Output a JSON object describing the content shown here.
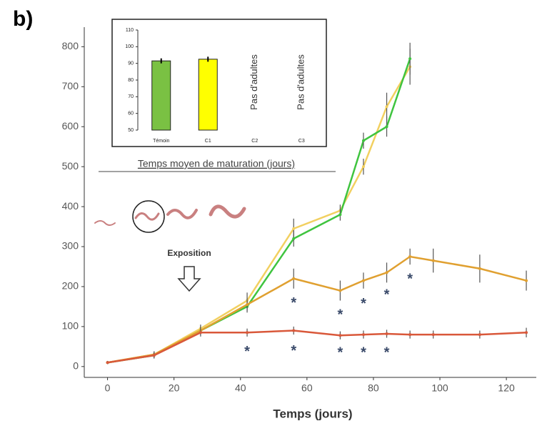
{
  "chart_data": [
    {
      "type": "line",
      "panel_label": "b)",
      "x_label": "Temps (jours)",
      "xlim": [
        -7,
        129
      ],
      "xticks": [
        0,
        20,
        40,
        60,
        80,
        100,
        120
      ],
      "ylim": [
        -20,
        840
      ],
      "yticks": [
        0,
        100,
        200,
        300,
        400,
        500,
        600,
        700,
        800
      ],
      "series": [
        {
          "color": "#f2d060",
          "x": [
            0,
            14,
            28,
            42,
            56,
            70,
            77,
            84,
            91
          ],
          "values": [
            10,
            30,
            95,
            165,
            345,
            390,
            500,
            650,
            750
          ],
          "errors": [
            4,
            8,
            10,
            20,
            25,
            15,
            20,
            35,
            45
          ]
        },
        {
          "color": "#3fc43f",
          "x": [
            0,
            14,
            28,
            42,
            56,
            70,
            77,
            84,
            91
          ],
          "values": [
            10,
            28,
            90,
            150,
            320,
            380,
            565,
            600,
            770
          ],
          "errors": [
            4,
            8,
            10,
            15,
            20,
            15,
            20,
            25,
            40
          ]
        },
        {
          "color": "#e0a030",
          "x": [
            0,
            14,
            28,
            42,
            56,
            70,
            77,
            84,
            91,
            98,
            112,
            126
          ],
          "values": [
            10,
            30,
            90,
            155,
            220,
            190,
            215,
            235,
            275,
            265,
            245,
            215
          ],
          "errors": [
            4,
            8,
            10,
            15,
            25,
            25,
            20,
            25,
            20,
            30,
            35,
            25
          ]
        },
        {
          "color": "#d9583a",
          "x": [
            0,
            14,
            28,
            42,
            56,
            70,
            77,
            84,
            91,
            98,
            112,
            126
          ],
          "values": [
            10,
            28,
            85,
            85,
            90,
            78,
            80,
            82,
            80,
            80,
            80,
            85
          ],
          "errors": [
            4,
            6,
            10,
            10,
            10,
            10,
            10,
            10,
            10,
            10,
            10,
            12
          ]
        }
      ],
      "significance": {
        "label": "*",
        "x": [
          42,
          56,
          56,
          70,
          70,
          77,
          77,
          84,
          84,
          91
        ],
        "values": [
          43,
          45,
          165,
          40,
          135,
          40,
          163,
          40,
          185,
          225
        ]
      },
      "annotation": "Exposition"
    },
    {
      "type": "bar",
      "title": "Temps moyen de maturation (jours)",
      "categories": [
        "Témoin",
        "C1",
        "C2",
        "C3"
      ],
      "values": [
        91.5,
        92.5,
        null,
        null
      ],
      "errors": [
        1.5,
        1.5,
        null,
        null
      ],
      "value_labels": [
        null,
        null,
        "Pas d'adultes",
        "Pas d'adultes"
      ],
      "colors": [
        "#7ac143",
        "#ffff00",
        null,
        null
      ],
      "ylim": [
        50,
        110
      ],
      "yticks": [
        50,
        60,
        70,
        80,
        90,
        100,
        110
      ]
    }
  ]
}
